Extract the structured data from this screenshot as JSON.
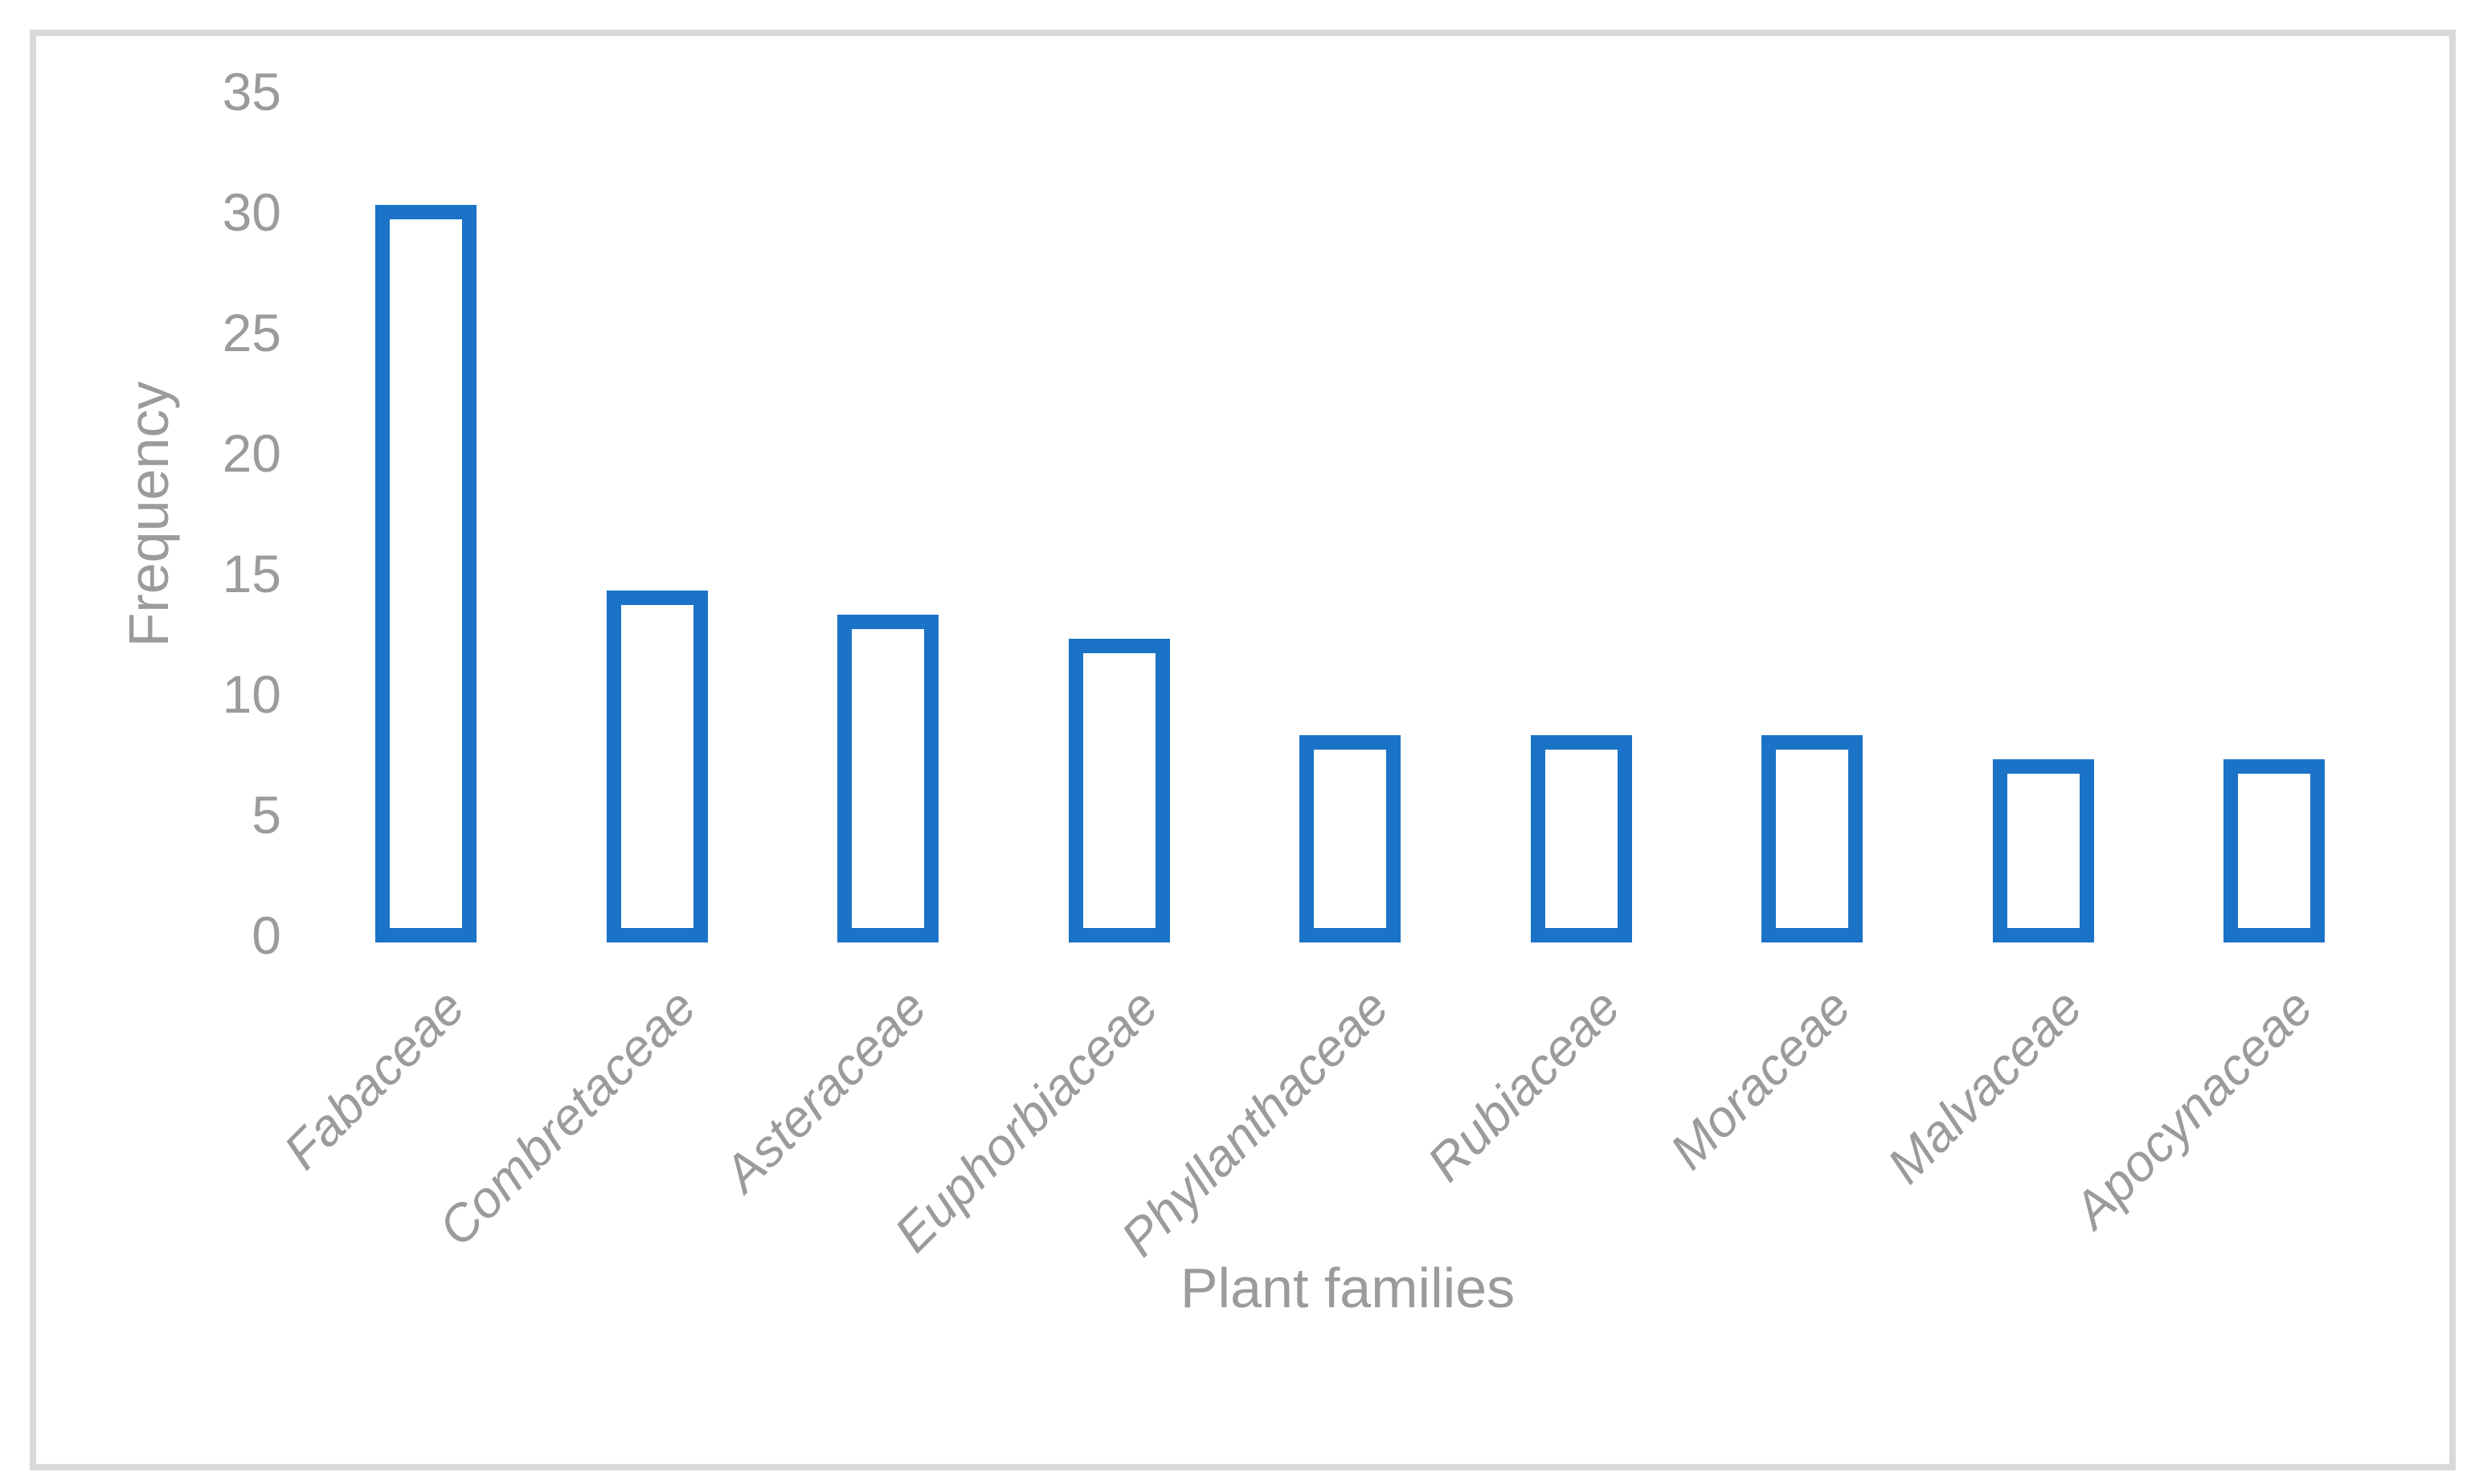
{
  "chart_data": {
    "type": "bar",
    "title": "",
    "categories": [
      "Fabaceae",
      "Combretaceae",
      "Asteraceae",
      "Euphorbiaceae",
      "Phyllanthaceae",
      "Rubiaceae",
      "Moraceae",
      "Malvaceae",
      "Apocynaceae"
    ],
    "values": [
      30,
      14,
      13,
      12,
      8,
      8,
      8,
      7,
      7
    ],
    "xlabel": "Plant families",
    "ylabel": "Frequency",
    "yticks": [
      0,
      5,
      10,
      15,
      20,
      25,
      30,
      35
    ],
    "ylim": [
      0,
      35
    ],
    "grid": false,
    "legend": false,
    "bar_fill": "#FFFFFF",
    "bar_stroke": "#1B73C8",
    "axis_text_color": "#9B9B9B",
    "frame_border_color": "#D9D9D9"
  }
}
